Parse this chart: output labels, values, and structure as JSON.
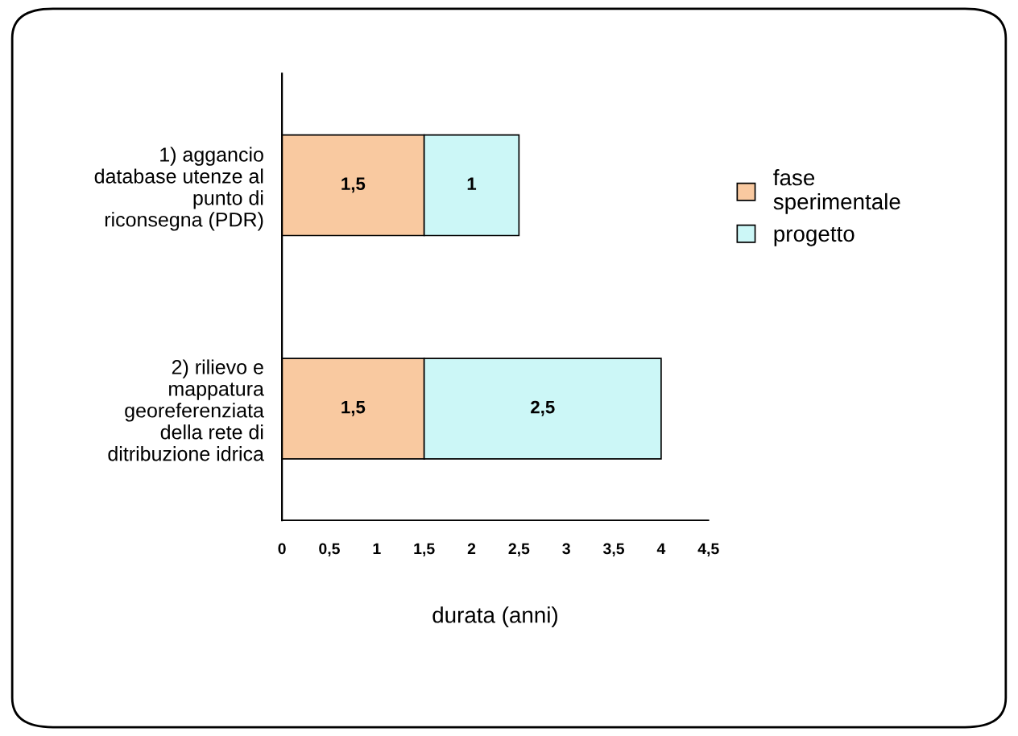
{
  "chart_data": {
    "type": "bar",
    "orientation": "horizontal",
    "stacked": true,
    "categories": [
      "1) aggancio\ndatabase utenze al\npunto di\nriconsegna (PDR)",
      "2) rilievo e\nmappatura\ngeoreferenziata\ndella rete di\nditribuzione idrica"
    ],
    "series": [
      {
        "name": "fase\nsperimentale",
        "color": "#f9c9a0",
        "values": [
          1.5,
          1.5
        ],
        "value_labels": [
          "1,5",
          "1,5"
        ]
      },
      {
        "name": "progetto",
        "color": "#ccf7f7",
        "values": [
          1,
          2.5
        ],
        "value_labels": [
          "1",
          "2,5"
        ]
      }
    ],
    "xlim": [
      0,
      4.5
    ],
    "xticks": [
      0,
      {
        "value": 0.5,
        "label": "0,5"
      },
      1,
      {
        "value": 1.5,
        "label": "1,5"
      },
      2,
      {
        "value": 2.5,
        "label": "2,5"
      },
      3,
      {
        "value": 3.5,
        "label": "3,5"
      },
      4,
      {
        "value": 4.5,
        "label": "4,5"
      }
    ],
    "xlabel": "durata (anni)",
    "legend": "right",
    "grid": false
  }
}
